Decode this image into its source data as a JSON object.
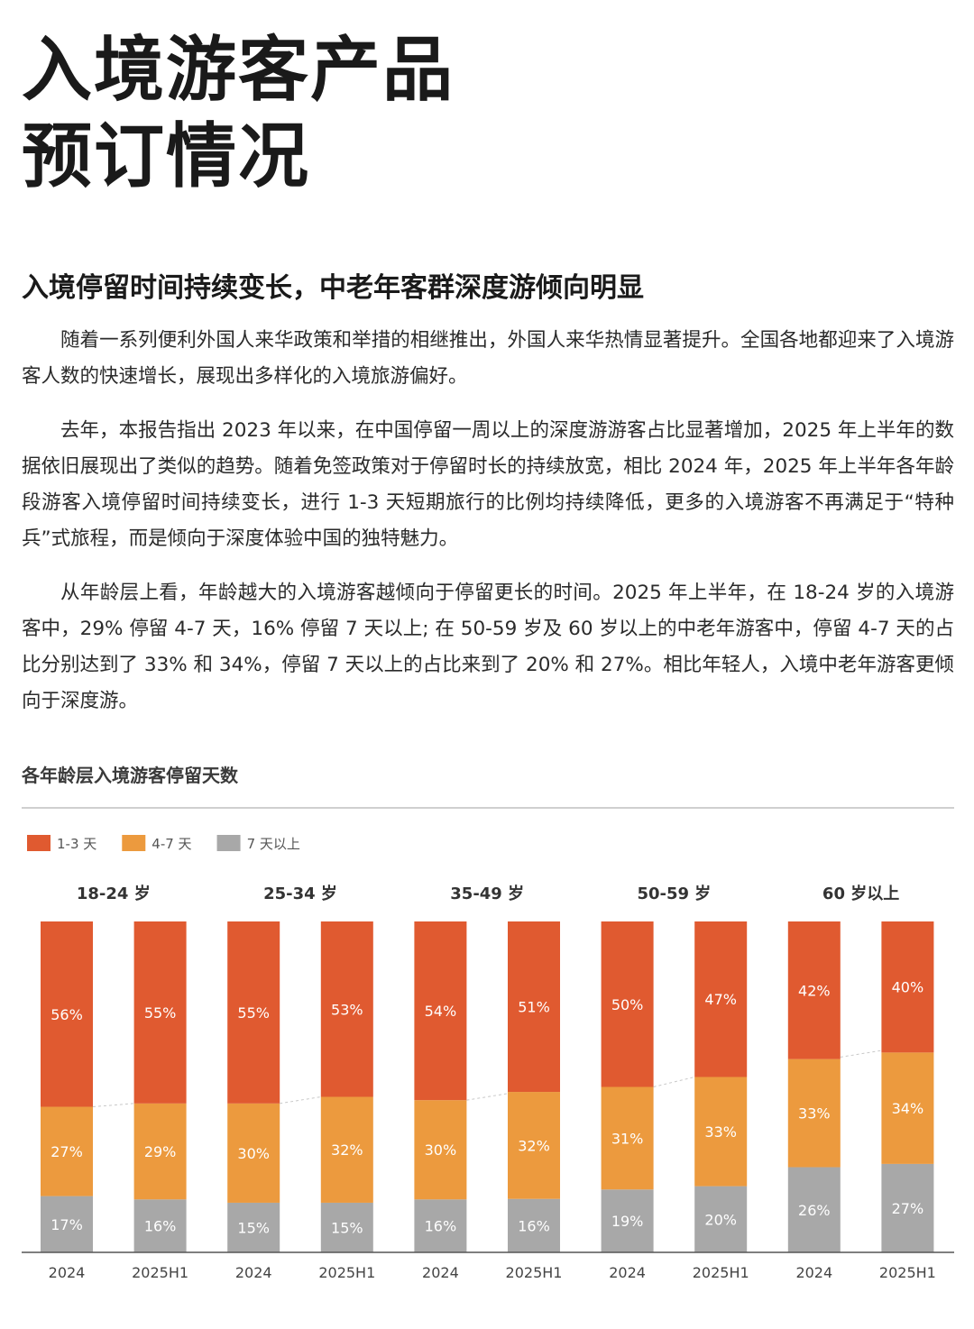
{
  "page": {
    "title_line1": "入境游客产品",
    "title_line2": "预订情况",
    "section_heading": "入境停留时间持续变长，中老年客群深度游倾向明显",
    "paragraphs": [
      "随着一系列便利外国人来华政策和举措的相继推出，外国人来华热情显著提升。全国各地都迎来了入境游客人数的快速增长，展现出多样化的入境旅游偏好。",
      "去年，本报告指出 2023 年以来，在中国停留一周以上的深度游游客占比显著增加，2025 年上半年的数据依旧展现出了类似的趋势。随着免签政策对于停留时长的持续放宽，相比 2024 年，2025 年上半年各年龄段游客入境停留时间持续变长，进行 1-3 天短期旅行的比例均持续降低，更多的入境游客不再满足于“特种兵”式旅程，而是倾向于深度体验中国的独特魅力。",
      "从年龄层上看，年龄越大的入境游客越倾向于停留更长的时间。2025 年上半年，在 18-24 岁的入境游客中，29% 停留 4-7 天，16% 停留 7 天以上; 在 50-59 岁及 60 岁以上的中老年游客中，停留 4-7 天的占比分别达到了 33% 和 34%，停留 7 天以上的占比来到了 20% 和 27%。相比年轻人，入境中老年游客更倾向于深度游。"
    ],
    "chart_title": "各年龄层入境游客停留天数"
  },
  "chart_data": {
    "type": "bar",
    "stacked": true,
    "normalized_percent": true,
    "groups": [
      "18-24 岁",
      "25-34 岁",
      "35-49 岁",
      "50-59 岁",
      "60 岁以上"
    ],
    "periods": [
      "2024",
      "2025H1"
    ],
    "categories": [
      "2024",
      "2025H1",
      "2024",
      "2025H1",
      "2024",
      "2025H1",
      "2024",
      "2025H1",
      "2024",
      "2025H1"
    ],
    "series": [
      {
        "name": "7 天以上",
        "color": "#a8a8a8",
        "values": [
          17,
          16,
          15,
          15,
          16,
          16,
          19,
          20,
          26,
          27
        ]
      },
      {
        "name": "4-7 天",
        "color": "#ec9a3e",
        "values": [
          27,
          29,
          30,
          32,
          30,
          32,
          31,
          33,
          33,
          34
        ]
      },
      {
        "name": "1-3 天",
        "color": "#e05a30",
        "values": [
          56,
          55,
          55,
          53,
          54,
          51,
          50,
          47,
          42,
          40
        ]
      }
    ],
    "legend_order": [
      "1-3 天",
      "4-7 天",
      "7 天以上"
    ],
    "legend_position": "top-left",
    "data_labels": true,
    "connector_lines": true,
    "grid": false
  }
}
